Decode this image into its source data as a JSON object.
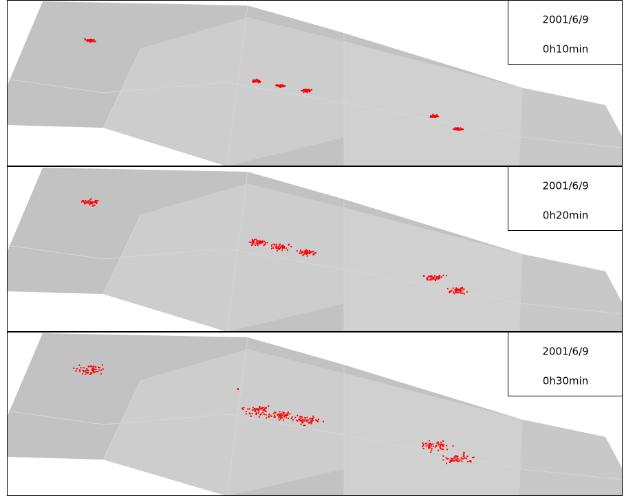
{
  "panels": [
    {
      "date": "2001/6/9",
      "time": "0h10min"
    },
    {
      "date": "2001/6/9",
      "time": "0h20min"
    },
    {
      "date": "2001/6/9",
      "time": "0h30min"
    }
  ]
}
